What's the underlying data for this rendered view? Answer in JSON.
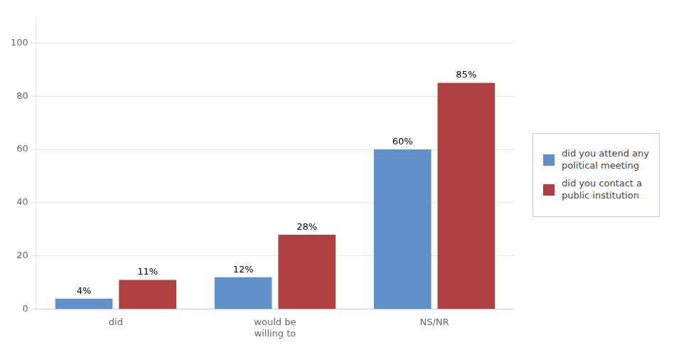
{
  "chart_data": {
    "type": "bar",
    "categories": [
      "did",
      "would be\nwilling to",
      "NS/NR"
    ],
    "series": [
      {
        "name": "did you attend any\npolitical meeting",
        "color": "#6090C8",
        "values": [
          4,
          12,
          60
        ],
        "value_labels": [
          "4%",
          "12%",
          "60%"
        ]
      },
      {
        "name": "did you contact a\npublic institution",
        "color": "#B04040",
        "values": [
          11,
          28,
          85
        ],
        "value_labels": [
          "11%",
          "28%",
          "85%"
        ]
      }
    ],
    "ylim": [
      0,
      110
    ],
    "yticks": [
      0,
      20,
      40,
      60,
      80,
      100
    ],
    "grid": true,
    "legend": "right",
    "data_labels": true
  }
}
